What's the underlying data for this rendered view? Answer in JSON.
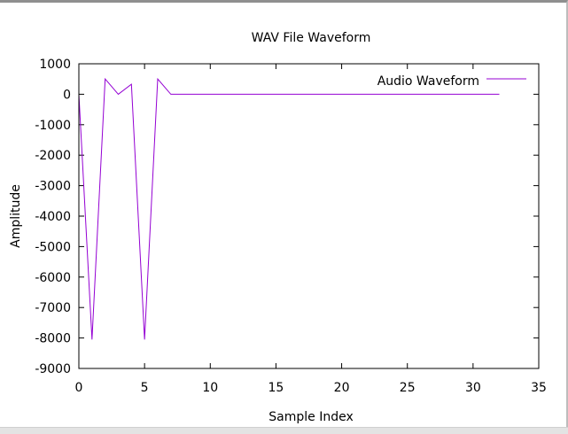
{
  "chart_data": {
    "type": "line",
    "title": "WAV File Waveform",
    "xlabel": "Sample Index",
    "ylabel": "Amplitude",
    "xlim": [
      0,
      35
    ],
    "ylim": [
      -9000,
      1000
    ],
    "xticks": [
      0,
      5,
      10,
      15,
      20,
      25,
      30,
      35
    ],
    "yticks": [
      1000,
      0,
      -1000,
      -2000,
      -3000,
      -4000,
      -5000,
      -6000,
      -7000,
      -8000,
      -9000
    ],
    "grid": false,
    "legend_position": "top-right",
    "series": [
      {
        "name": "Audio Waveform",
        "color": "#9400d3",
        "x": [
          0,
          1,
          2,
          3,
          4,
          5,
          6,
          7,
          8,
          9,
          10,
          11,
          12,
          13,
          14,
          15,
          16,
          17,
          18,
          19,
          20,
          21,
          22,
          23,
          24,
          25,
          26,
          27,
          28,
          29,
          30,
          31,
          32
        ],
        "values": [
          0,
          -8050,
          500,
          0,
          330,
          -8050,
          500,
          0,
          0,
          0,
          0,
          0,
          0,
          0,
          0,
          0,
          0,
          0,
          0,
          0,
          0,
          0,
          0,
          0,
          0,
          0,
          0,
          0,
          0,
          0,
          0,
          0,
          0
        ]
      }
    ]
  }
}
